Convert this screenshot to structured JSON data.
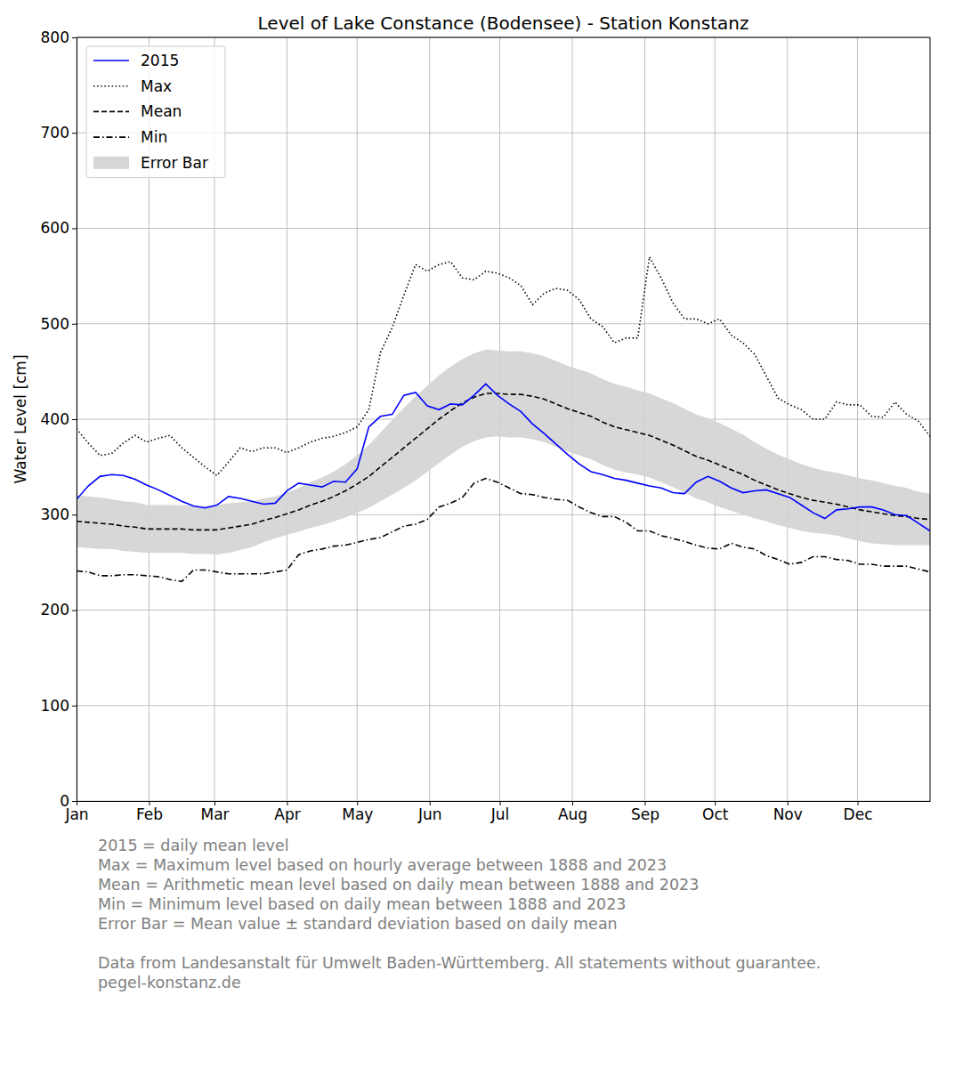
{
  "chart_data": {
    "type": "line",
    "title": "Level of Lake Constance (Bodensee) - Station Konstanz",
    "y_label": "Water Level [cm]",
    "x": [
      0,
      5,
      10,
      15,
      20,
      25,
      30,
      35,
      40,
      45,
      50,
      55,
      60,
      65,
      70,
      75,
      80,
      85,
      90,
      95,
      100,
      105,
      110,
      115,
      120,
      125,
      130,
      135,
      140,
      145,
      150,
      155,
      160,
      165,
      170,
      175,
      180,
      185,
      190,
      195,
      200,
      205,
      210,
      215,
      220,
      225,
      230,
      235,
      240,
      245,
      250,
      255,
      260,
      265,
      270,
      275,
      280,
      285,
      290,
      295,
      300,
      305,
      310,
      315,
      320,
      325,
      330,
      335,
      340,
      345,
      350,
      355,
      360,
      365
    ],
    "xlim": [
      0,
      365
    ],
    "xticks": [
      {
        "value": 0,
        "label": "Jan"
      },
      {
        "value": 31,
        "label": "Feb"
      },
      {
        "value": 59,
        "label": "Mar"
      },
      {
        "value": 90,
        "label": "Apr"
      },
      {
        "value": 120,
        "label": "May"
      },
      {
        "value": 151,
        "label": "Jun"
      },
      {
        "value": 181,
        "label": "Jul"
      },
      {
        "value": 212,
        "label": "Aug"
      },
      {
        "value": 243,
        "label": "Sep"
      },
      {
        "value": 273,
        "label": "Oct"
      },
      {
        "value": 304,
        "label": "Nov"
      },
      {
        "value": 334,
        "label": "Dec"
      }
    ],
    "ylim": [
      0,
      800
    ],
    "yticks": [
      0,
      100,
      200,
      300,
      400,
      500,
      600,
      700,
      800
    ],
    "grid": true,
    "legend": "upper left",
    "series": [
      {
        "name": "2015",
        "color": "#0000ff",
        "line_style": "solid",
        "values": [
          316,
          330,
          340,
          342,
          341,
          337,
          331,
          326,
          320,
          314,
          309,
          307,
          310,
          319,
          317,
          314,
          311,
          312,
          325,
          333,
          331,
          329,
          335,
          334,
          348,
          392,
          403,
          405,
          425,
          428,
          414,
          410,
          416,
          415,
          425,
          437,
          425,
          416,
          408,
          395,
          385,
          374,
          363,
          353,
          345,
          342,
          338,
          336,
          333,
          330,
          328,
          323,
          322,
          334,
          340,
          335,
          328,
          323,
          325,
          326,
          322,
          318,
          310,
          302,
          296,
          305,
          306,
          308,
          308,
          305,
          300,
          299,
          291,
          283
        ]
      },
      {
        "name": "Max",
        "color": "#000000",
        "line_style": "dotted",
        "values": [
          390,
          375,
          362,
          364,
          375,
          383,
          376,
          380,
          383,
          370,
          360,
          350,
          341,
          355,
          370,
          366,
          370,
          370,
          365,
          370,
          376,
          380,
          382,
          386,
          392,
          410,
          470,
          496,
          530,
          562,
          555,
          562,
          565,
          548,
          546,
          555,
          553,
          548,
          540,
          520,
          532,
          537,
          535,
          525,
          505,
          497,
          480,
          485,
          485,
          570,
          548,
          522,
          505,
          505,
          500,
          505,
          488,
          480,
          468,
          445,
          422,
          415,
          410,
          400,
          400,
          418,
          415,
          415,
          403,
          402,
          418,
          405,
          398,
          382
        ]
      },
      {
        "name": "Mean",
        "color": "#000000",
        "line_style": "dashed",
        "values": [
          293,
          292,
          291,
          290,
          288,
          287,
          285,
          285,
          285,
          285,
          284,
          284,
          284,
          286,
          288,
          290,
          294,
          297,
          301,
          305,
          310,
          314,
          319,
          325,
          332,
          340,
          350,
          360,
          370,
          380,
          390,
          400,
          409,
          417,
          423,
          427,
          427,
          426,
          426,
          424,
          421,
          416,
          411,
          407,
          403,
          397,
          392,
          389,
          386,
          383,
          378,
          373,
          367,
          361,
          357,
          352,
          347,
          342,
          336,
          331,
          326,
          322,
          318,
          315,
          313,
          311,
          308,
          305,
          303,
          301,
          299,
          298,
          296,
          295
        ]
      },
      {
        "name": "Min",
        "color": "#000000",
        "line_style": "dashdot",
        "values": [
          241,
          240,
          236,
          236,
          237,
          237,
          236,
          235,
          232,
          230,
          242,
          242,
          240,
          238,
          238,
          238,
          238,
          240,
          242,
          258,
          262,
          264,
          267,
          268,
          271,
          274,
          276,
          282,
          288,
          290,
          295,
          308,
          312,
          318,
          333,
          338,
          334,
          328,
          322,
          321,
          318,
          316,
          315,
          308,
          302,
          298,
          298,
          292,
          283,
          283,
          278,
          275,
          272,
          268,
          265,
          264,
          270,
          266,
          264,
          257,
          253,
          248,
          250,
          256,
          256,
          253,
          252,
          248,
          248,
          246,
          246,
          246,
          243,
          240
        ]
      },
      {
        "name": "Error Bar",
        "type": "band",
        "color": "#d3d3d3",
        "lower": [
          266,
          265,
          264,
          264,
          262,
          261,
          260,
          260,
          260,
          260,
          259,
          259,
          258,
          260,
          263,
          266,
          271,
          275,
          279,
          282,
          286,
          289,
          293,
          297,
          302,
          307,
          314,
          321,
          328,
          336,
          345,
          354,
          363,
          371,
          377,
          381,
          382,
          381,
          381,
          379,
          376,
          371,
          366,
          362,
          358,
          352,
          347,
          344,
          342,
          339,
          334,
          329,
          323,
          317,
          313,
          308,
          304,
          300,
          296,
          293,
          289,
          286,
          283,
          281,
          280,
          278,
          275,
          272,
          270,
          269,
          268,
          268,
          268,
          268
        ],
        "upper": [
          320,
          319,
          318,
          316,
          314,
          313,
          310,
          310,
          310,
          310,
          309,
          309,
          310,
          312,
          313,
          314,
          317,
          319,
          323,
          328,
          334,
          339,
          345,
          353,
          362,
          373,
          386,
          399,
          412,
          424,
          435,
          446,
          455,
          463,
          469,
          473,
          472,
          471,
          471,
          469,
          466,
          461,
          456,
          452,
          448,
          442,
          437,
          434,
          430,
          427,
          422,
          417,
          411,
          405,
          401,
          396,
          390,
          384,
          376,
          369,
          363,
          358,
          353,
          349,
          346,
          344,
          341,
          338,
          336,
          333,
          330,
          328,
          324,
          322
        ]
      }
    ],
    "notes": [
      "2015 = daily mean level",
      "Max = Maximum level based on hourly average between 1888 and 2023",
      "Mean = Arithmetic mean level based on daily mean between 1888 and 2023",
      "Min = Minimum level based on daily mean between 1888 and 2023",
      "Error Bar = Mean value ± standard deviation based on daily mean"
    ],
    "source": [
      "Data from Landesanstalt für Umwelt Baden-Württemberg. All statements without guarantee.",
      "pegel-konstanz.de"
    ]
  }
}
